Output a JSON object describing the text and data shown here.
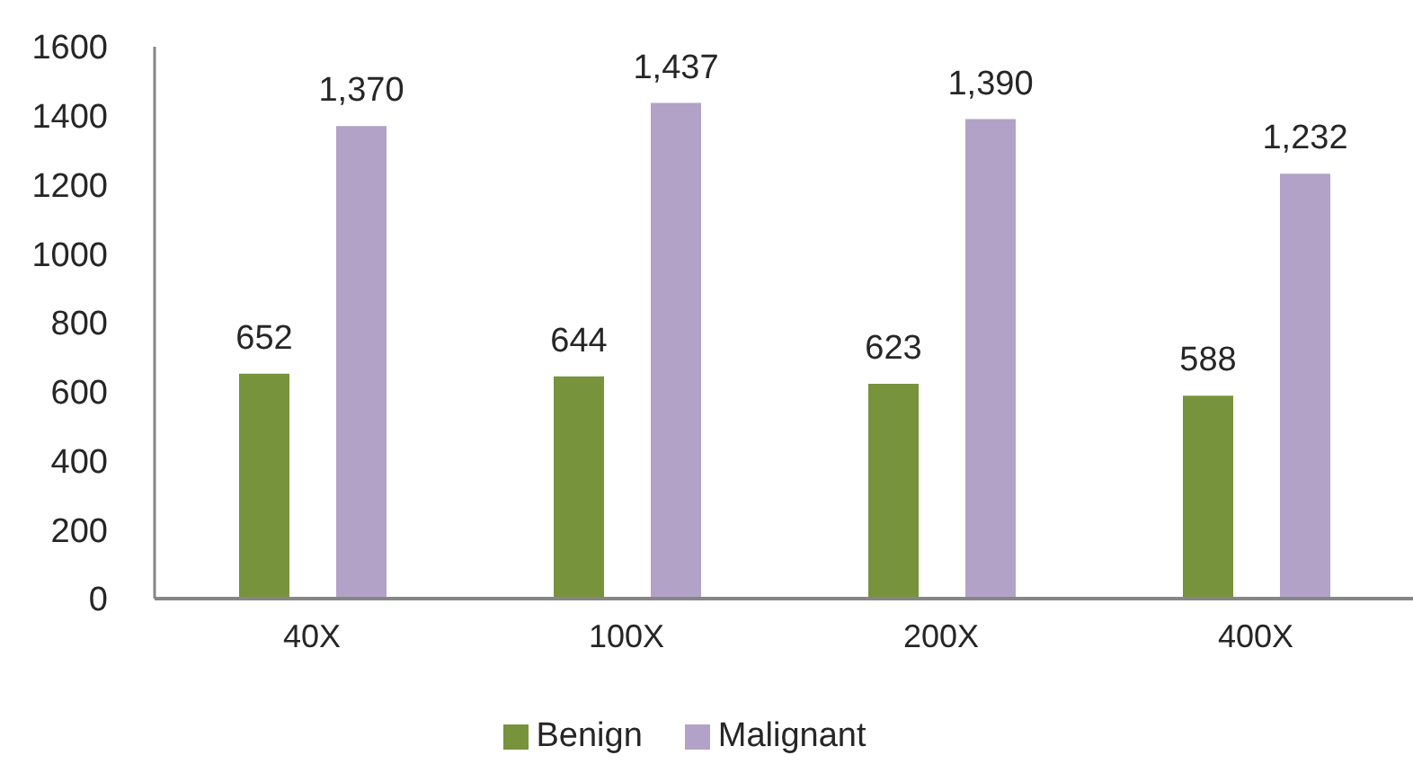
{
  "chart_data": {
    "type": "bar",
    "categories": [
      "40X",
      "100X",
      "200X",
      "400X"
    ],
    "series": [
      {
        "name": "Benign",
        "color": "#77933c",
        "values": [
          652,
          644,
          623,
          588
        ],
        "value_labels": [
          "652",
          "644",
          "623",
          "588"
        ]
      },
      {
        "name": "Malignant",
        "color": "#b3a2c7",
        "values": [
          1370,
          1437,
          1390,
          1232
        ],
        "value_labels": [
          "1,370",
          "1,437",
          "1,390",
          "1,232"
        ]
      }
    ],
    "ylim": [
      0,
      1600
    ],
    "yticks": [
      0,
      200,
      400,
      600,
      800,
      1000,
      1200,
      1400,
      1600
    ],
    "legend": "bottom"
  }
}
